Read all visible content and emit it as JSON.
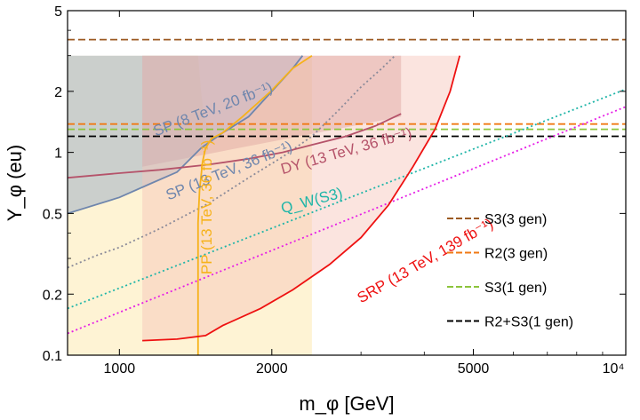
{
  "chart_data": {
    "type": "line",
    "xlabel": "m_φ [GeV]",
    "ylabel": "Y_φ (eu)",
    "xscale": "log",
    "yscale": "log",
    "xlim": [
      790,
      10000
    ],
    "ylim": [
      0.1,
      5
    ],
    "xticks": [
      {
        "value": 1000,
        "label": "1000"
      },
      {
        "value": 2000,
        "label": "2000"
      },
      {
        "value": 5000,
        "label": "5000"
      },
      {
        "value": 10000,
        "label": "10⁴"
      }
    ],
    "yticks": [
      {
        "value": 0.1,
        "label": "0.1"
      },
      {
        "value": 0.2,
        "label": "0.2"
      },
      {
        "value": 0.5,
        "label": "0.5"
      },
      {
        "value": 1,
        "label": "1"
      },
      {
        "value": 2,
        "label": "2"
      },
      {
        "value": 5,
        "label": "5"
      }
    ],
    "regions": [
      {
        "name": "pp-13tev-region",
        "color": "#fde9b0",
        "opacity": 0.55,
        "x": [
          790,
          1430,
          1450,
          1470,
          1500,
          1550,
          1650,
          1800,
          1990,
          2200,
          2400,
          2400,
          790
        ],
        "y": [
          3,
          3,
          2.0,
          1.5,
          1.3,
          1.17,
          1.25,
          1.5,
          2.0,
          2.6,
          3,
          0.1,
          0.1
        ]
      },
      {
        "name": "dy-region",
        "color": "#c98a8a",
        "opacity": 0.45,
        "x": [
          1110,
          1300,
          1800,
          2400,
          3000,
          3600,
          3600,
          1110
        ],
        "y": [
          3,
          3,
          3,
          3,
          3,
          3,
          1.5,
          0.85
        ]
      },
      {
        "name": "sp-8tev-region",
        "color": "#8da3c4",
        "opacity": 0.45,
        "x": [
          790,
          2300,
          2200,
          2000,
          1800,
          1600,
          1450,
          1300,
          1150,
          1000,
          790
        ],
        "y": [
          3,
          3,
          2.6,
          2.0,
          1.5,
          1.25,
          1.05,
          0.8,
          0.7,
          0.6,
          0.5
        ]
      },
      {
        "name": "srp-region",
        "color": "#f7c3b8",
        "opacity": 0.45,
        "x": [
          1110,
          4700,
          4500,
          4200,
          3800,
          3400,
          3000,
          2600,
          2200,
          1900,
          1600,
          1480,
          1110
        ],
        "y": [
          3,
          3,
          2.0,
          1.3,
          0.85,
          0.55,
          0.38,
          0.28,
          0.21,
          0.17,
          0.14,
          0.125,
          0.118
        ]
      }
    ],
    "series": [
      {
        "name": "S3 (3 gen)",
        "color": "#9c5a22",
        "style": "dashed",
        "x": [
          790,
          10000
        ],
        "y": [
          3.6,
          3.6
        ]
      },
      {
        "name": "R2 (3 gen)",
        "color": "#f07a14",
        "style": "dashed",
        "x": [
          790,
          10000
        ],
        "y": [
          1.38,
          1.38
        ]
      },
      {
        "name": "S3 (1 gen)",
        "color": "#8cc43c",
        "style": "dashed",
        "x": [
          790,
          10000
        ],
        "y": [
          1.3,
          1.3
        ]
      },
      {
        "name": "R2+S3 (1 gen)",
        "color": "#000000",
        "style": "dashed",
        "x": [
          790,
          10000
        ],
        "y": [
          1.2,
          1.2
        ]
      },
      {
        "name": "SP (8 TeV, 20 fb⁻¹)",
        "color": "#6f86ad",
        "style": "solid",
        "x": [
          790,
          1000,
          1150,
          1300,
          1450,
          1600,
          1800,
          2000,
          2200,
          2300
        ],
        "y": [
          0.5,
          0.6,
          0.7,
          0.8,
          1.05,
          1.25,
          1.5,
          2.0,
          2.6,
          3.0
        ]
      },
      {
        "name": "SP (13 TeV, 36 fb⁻¹)",
        "color": "#8a8a99",
        "style": "dotted",
        "x": [
          790,
          900,
          1000,
          1200,
          1500,
          1800,
          2100,
          2400,
          2700,
          3000,
          3300,
          3500
        ],
        "y": [
          0.27,
          0.31,
          0.34,
          0.42,
          0.56,
          0.75,
          0.95,
          1.2,
          1.6,
          2.1,
          2.6,
          3.0
        ]
      },
      {
        "name": "DY (13 TeV, 36 fb⁻¹)",
        "color": "#b5536a",
        "style": "solid",
        "x": [
          790,
          1000,
          1200,
          1500,
          1800,
          2100,
          2400,
          2800,
          3200,
          3600
        ],
        "y": [
          0.75,
          0.79,
          0.82,
          0.87,
          0.93,
          1.0,
          1.09,
          1.2,
          1.35,
          1.55
        ]
      },
      {
        "name": "PP (13 TeV, 36 fb⁻¹)",
        "color": "#f6b21a",
        "style": "solid",
        "x": [
          1430,
          1430,
          1440,
          1460,
          1480,
          1520,
          1600,
          1750,
          1990,
          2200,
          2400
        ],
        "y": [
          0.1,
          0.45,
          0.65,
          0.9,
          1.05,
          1.17,
          1.25,
          1.5,
          2.0,
          2.6,
          3.0
        ]
      },
      {
        "name": "Q_W(S3)",
        "color": "#1fb5a8",
        "style": "dotted",
        "x": [
          790,
          10000
        ],
        "y": [
          0.17,
          2.05
        ]
      },
      {
        "name": "magenta-dotted",
        "color": "#e61ee6",
        "style": "dotted",
        "x": [
          790,
          10000
        ],
        "y": [
          0.128,
          1.68
        ]
      },
      {
        "name": "SRP (13 TeV, 139 fb⁻¹)",
        "color": "#ee1111",
        "style": "solid",
        "x": [
          1110,
          1300,
          1480,
          1600,
          1900,
          2200,
          2600,
          3000,
          3400,
          3800,
          4200,
          4500,
          4700
        ],
        "y": [
          0.118,
          0.12,
          0.125,
          0.14,
          0.17,
          0.21,
          0.28,
          0.38,
          0.55,
          0.85,
          1.3,
          2.0,
          3.0
        ]
      }
    ],
    "curve_labels": [
      {
        "text": "SP (8 TeV, 20 fb⁻¹)",
        "color": "#6f86ad",
        "x": 1180,
        "y": 1.2,
        "angle": -21
      },
      {
        "text": "SP (13 TeV, 36 fb⁻¹)",
        "color": "#6f86ad",
        "x": 1250,
        "y": 0.58,
        "angle": -22
      },
      {
        "text": "DY (13 TeV, 36 fb⁻¹)",
        "color": "#b5536a",
        "x": 2100,
        "y": 0.78,
        "angle": -16
      },
      {
        "text": "PP (13 TeV, 36 fb⁻¹)",
        "color": "#f6b21a",
        "x": 1520,
        "y": 0.25,
        "angle": -90
      },
      {
        "text": "Q_W(S3)",
        "color": "#1fb5a8",
        "x": 2100,
        "y": 0.5,
        "angle": -15
      },
      {
        "text": "SRP (13 TeV, 139 fb⁻¹)",
        "color": "#ee1111",
        "x": 3000,
        "y": 0.18,
        "angle": -30
      }
    ],
    "legend": {
      "position": "bottom-right",
      "entries": [
        {
          "label": "S3(3 gen)",
          "color": "#9c5a22"
        },
        {
          "label": "R2(3 gen)",
          "color": "#f07a14"
        },
        {
          "label": "S3(1 gen)",
          "color": "#8cc43c"
        },
        {
          "label": "R2+S3(1 gen)",
          "color": "#000000"
        }
      ]
    }
  }
}
